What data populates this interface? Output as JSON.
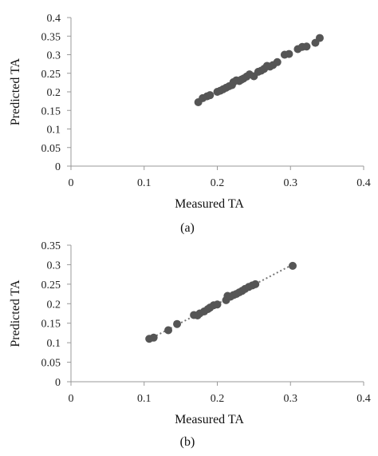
{
  "chart_data": [
    {
      "panel": "a",
      "type": "scatter",
      "panel_label": "(a)",
      "xlabel": "Measured TA",
      "ylabel": "Predicted TA",
      "xlim": [
        0,
        0.4
      ],
      "ylim": [
        0,
        0.4
      ],
      "xticks": [
        "0",
        "0.1",
        "0.2",
        "0.3",
        "0.4"
      ],
      "yticks": [
        "0",
        "0.05",
        "0.1",
        "0.15",
        "0.2",
        "0.25",
        "0.3",
        "0.35",
        "0.4"
      ],
      "grid": false,
      "trendline": false,
      "marker_color": "#555555",
      "points": [
        [
          0.174,
          0.172
        ],
        [
          0.18,
          0.183
        ],
        [
          0.186,
          0.188
        ],
        [
          0.19,
          0.191
        ],
        [
          0.2,
          0.2
        ],
        [
          0.204,
          0.203
        ],
        [
          0.208,
          0.207
        ],
        [
          0.212,
          0.211
        ],
        [
          0.216,
          0.215
        ],
        [
          0.22,
          0.218
        ],
        [
          0.222,
          0.226
        ],
        [
          0.226,
          0.231
        ],
        [
          0.23,
          0.229
        ],
        [
          0.233,
          0.233
        ],
        [
          0.236,
          0.236
        ],
        [
          0.24,
          0.241
        ],
        [
          0.244,
          0.247
        ],
        [
          0.25,
          0.242
        ],
        [
          0.256,
          0.254
        ],
        [
          0.26,
          0.257
        ],
        [
          0.264,
          0.262
        ],
        [
          0.268,
          0.27
        ],
        [
          0.272,
          0.268
        ],
        [
          0.276,
          0.272
        ],
        [
          0.282,
          0.28
        ],
        [
          0.292,
          0.3
        ],
        [
          0.298,
          0.302
        ],
        [
          0.31,
          0.315
        ],
        [
          0.316,
          0.321
        ],
        [
          0.322,
          0.322
        ],
        [
          0.334,
          0.332
        ],
        [
          0.34,
          0.345
        ]
      ]
    },
    {
      "panel": "b",
      "type": "scatter",
      "panel_label": "(b)",
      "xlabel": "Measured TA",
      "ylabel": "Predicted TA",
      "xlim": [
        0,
        0.4
      ],
      "ylim": [
        0,
        0.35
      ],
      "xticks": [
        "0",
        "0.1",
        "0.2",
        "0.3",
        "0.4"
      ],
      "yticks": [
        "0",
        "0.05",
        "0.1",
        "0.15",
        "0.2",
        "0.25",
        "0.3",
        "0.35"
      ],
      "grid": false,
      "trendline": true,
      "trendline_color": "#777777",
      "marker_color": "#555555",
      "points": [
        [
          0.107,
          0.11
        ],
        [
          0.113,
          0.113
        ],
        [
          0.133,
          0.132
        ],
        [
          0.145,
          0.148
        ],
        [
          0.168,
          0.171
        ],
        [
          0.173,
          0.17
        ],
        [
          0.176,
          0.175
        ],
        [
          0.182,
          0.18
        ],
        [
          0.187,
          0.186
        ],
        [
          0.19,
          0.19
        ],
        [
          0.195,
          0.196
        ],
        [
          0.2,
          0.198
        ],
        [
          0.212,
          0.209
        ],
        [
          0.214,
          0.22
        ],
        [
          0.218,
          0.218
        ],
        [
          0.222,
          0.222
        ],
        [
          0.226,
          0.225
        ],
        [
          0.23,
          0.229
        ],
        [
          0.234,
          0.233
        ],
        [
          0.238,
          0.238
        ],
        [
          0.243,
          0.243
        ],
        [
          0.248,
          0.247
        ],
        [
          0.252,
          0.25
        ],
        [
          0.303,
          0.297
        ]
      ]
    }
  ]
}
